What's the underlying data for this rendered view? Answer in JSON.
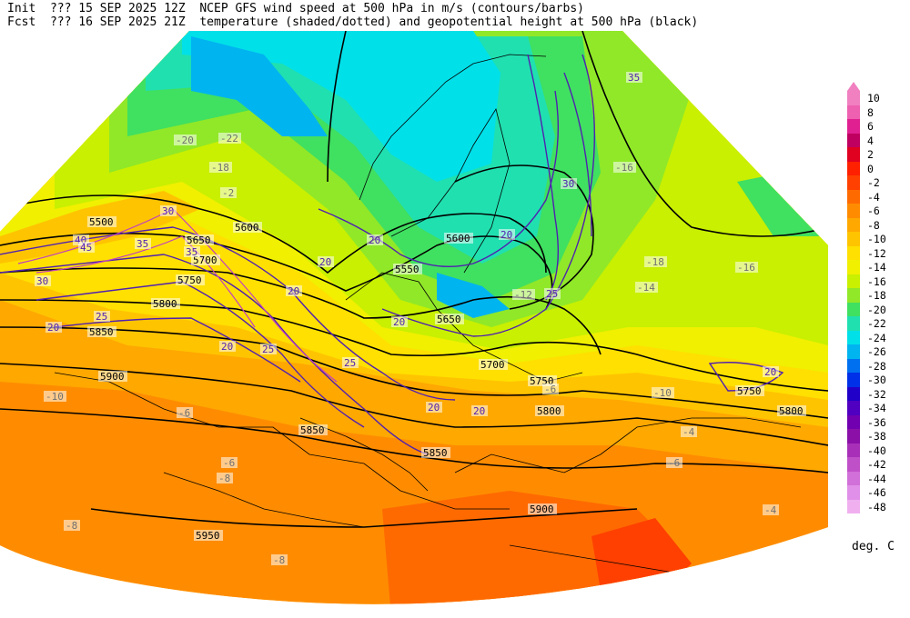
{
  "header": {
    "init_label": "Init",
    "init_value": "??? 15 SEP 2025 12Z",
    "fcst_label": "Fcst",
    "fcst_value": "??? 16 SEP 2025 21Z",
    "title_line1": "NCEP GFS wind speed at 500 hPa in m/s (contours/barbs)",
    "title_line2": "temperature (shaded/dotted) and geopotential height at 500 hPa (black)"
  },
  "colorbar": {
    "units": "deg. C",
    "levels": [
      {
        "label": "10",
        "color": "#f080c0"
      },
      {
        "label": "8",
        "color": "#ee60b0"
      },
      {
        "label": "6",
        "color": "#e02090"
      },
      {
        "label": "4",
        "color": "#c00060"
      },
      {
        "label": "2",
        "color": "#e00020"
      },
      {
        "label": "0",
        "color": "#ff2000"
      },
      {
        "label": "-2",
        "color": "#ff4000"
      },
      {
        "label": "-4",
        "color": "#ff6a00"
      },
      {
        "label": "-6",
        "color": "#ff8c00"
      },
      {
        "label": "-8",
        "color": "#ffa800"
      },
      {
        "label": "-10",
        "color": "#ffc400"
      },
      {
        "label": "-12",
        "color": "#ffe000"
      },
      {
        "label": "-14",
        "color": "#f0f000"
      },
      {
        "label": "-16",
        "color": "#c8f000"
      },
      {
        "label": "-18",
        "color": "#90e828"
      },
      {
        "label": "-20",
        "color": "#40e060"
      },
      {
        "label": "-22",
        "color": "#20e0b0"
      },
      {
        "label": "-24",
        "color": "#00e0e8"
      },
      {
        "label": "-26",
        "color": "#00b4f0"
      },
      {
        "label": "-28",
        "color": "#0070f0"
      },
      {
        "label": "-30",
        "color": "#0030e8"
      },
      {
        "label": "-32",
        "color": "#2000c8"
      },
      {
        "label": "-34",
        "color": "#5000c0"
      },
      {
        "label": "-36",
        "color": "#7000b0"
      },
      {
        "label": "-38",
        "color": "#8a10a8"
      },
      {
        "label": "-40",
        "color": "#a830b8"
      },
      {
        "label": "-42",
        "color": "#c050c8"
      },
      {
        "label": "-44",
        "color": "#d070d8"
      },
      {
        "label": "-46",
        "color": "#e090e8"
      },
      {
        "label": "-48",
        "color": "#f0b0f0"
      }
    ]
  },
  "contour_labels": {
    "height": [
      "5500",
      "5600",
      "5650",
      "5700",
      "5750",
      "5800",
      "5850",
      "5900",
      "5950",
      "5550",
      "5600",
      "5650",
      "5700",
      "5750",
      "5800",
      "5850",
      "5900",
      "5800",
      "5750",
      "5850"
    ],
    "wind": [
      "20",
      "25",
      "30",
      "35",
      "40",
      "45",
      "30",
      "35",
      "20",
      "25",
      "20",
      "20",
      "25",
      "20",
      "20",
      "20",
      "20",
      "20",
      "25",
      "30",
      "35",
      "20"
    ],
    "temperature": [
      "-22",
      "-20",
      "-18",
      "-16",
      "-12",
      "-10",
      "-8",
      "-6",
      "-4",
      "-14",
      "-16",
      "-18",
      "-10",
      "-8",
      "-6",
      "-6",
      "-8",
      "-6",
      "-4",
      "-2"
    ]
  }
}
